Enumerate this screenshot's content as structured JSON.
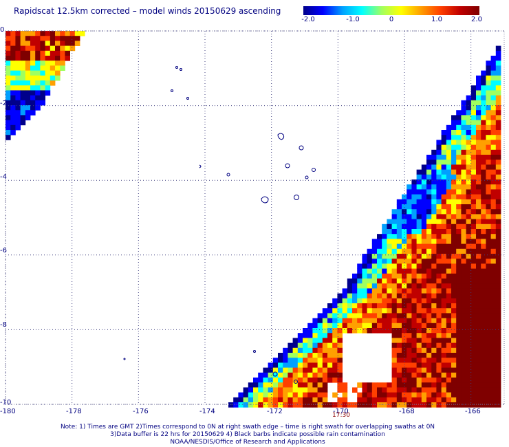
{
  "title": "Rapidscat 12.5km corrected – model winds 20150629 ascending",
  "colorbar": {
    "labels": [
      "-2.0",
      "-1.0",
      "0",
      "1.0",
      "2.0"
    ],
    "values": [
      -2.0,
      -1.0,
      0,
      1.0,
      2.0
    ],
    "range": [
      -2.0,
      2.0
    ],
    "colors": [
      "#00008b",
      "#0000ff",
      "#00a0ff",
      "#00ffff",
      "#a0ff60",
      "#ffff00",
      "#ffa000",
      "#ff4000",
      "#c00000",
      "#7f0000"
    ]
  },
  "map": {
    "lon_range": [
      -180,
      -165
    ],
    "lat_range": [
      -10,
      0
    ],
    "x_ticks": [
      "-180",
      "-178",
      "-176",
      "-174",
      "-172",
      "-170",
      "-168",
      "-166"
    ],
    "y_ticks": [
      "0",
      "-2",
      "-4",
      "-6",
      "-8",
      "-10"
    ],
    "grid": "dotted",
    "time_label": "17:30"
  },
  "footnote": {
    "line1": "Note: 1) Times are GMT 2)Times correspond to 0N at right swath edge – time is right swath for overlapping swaths at 0N",
    "line2": "3)Data buffer is 22 hrs for 20150629 4) Black barbs indicate possible rain contamination",
    "line3": "NOAA/NESDIS/Office of Research and Applications"
  }
}
